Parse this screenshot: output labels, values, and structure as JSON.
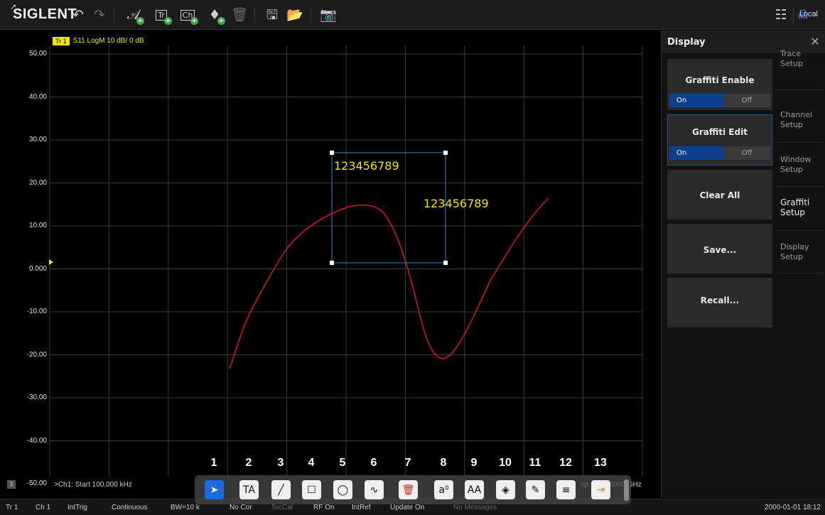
{
  "app": {
    "brand": "SIGLENT",
    "remote_label": "Local"
  },
  "toolbar": {
    "icons": [
      "pointer-icon",
      "undo-icon",
      "redo-icon",
      "add-trace-icon",
      "add-trace-window-icon",
      "add-channel-icon",
      "add-marker-icon",
      "delete-icon",
      "save-icon",
      "open-folder-icon",
      "camera-icon",
      "layout-icon",
      "network-icon"
    ]
  },
  "trace": {
    "badge": "Tr 1",
    "description": "S11 LogM 10 dB/ 0 dB",
    "color": "#f2e600",
    "curve_color": "#e01020"
  },
  "y_axis": {
    "ticks": [
      "50.00",
      "40.00",
      "30.00",
      "20.00",
      "10.00",
      "0.000",
      "-10.00",
      "-20.00",
      "-30.00",
      "-40.00",
      "-50.00"
    ]
  },
  "channel_line": {
    "index": "1",
    "start": ">Ch1: Start 100.000 kHz",
    "stop_suffix": "op",
    "stop_value": "00000 GHz"
  },
  "graffiti": {
    "text1": "123456789",
    "text2": "123456789"
  },
  "tools": {
    "numbers": [
      "1",
      "2",
      "3",
      "4",
      "5",
      "6",
      "7",
      "8",
      "9",
      "10",
      "11",
      "12",
      "13"
    ],
    "items": [
      {
        "name": "select-arrow-tool",
        "glyph": "➤"
      },
      {
        "name": "text-tool",
        "glyph": "TA"
      },
      {
        "name": "line-tool",
        "glyph": "╱"
      },
      {
        "name": "rectangle-tool",
        "glyph": "☐"
      },
      {
        "name": "ellipse-tool",
        "glyph": "◯"
      },
      {
        "name": "freehand-tool",
        "glyph": "∿"
      },
      {
        "name": "delete-tool",
        "glyph": "🗑"
      },
      {
        "name": "font-size-tool",
        "glyph": "a⁰"
      },
      {
        "name": "font-tool",
        "glyph": "AA"
      },
      {
        "name": "fill-color-tool",
        "glyph": "◈"
      },
      {
        "name": "pen-color-tool",
        "glyph": "✎"
      },
      {
        "name": "line-width-tool",
        "glyph": "≡"
      },
      {
        "name": "exit-tool",
        "glyph": "⇥"
      }
    ]
  },
  "panel": {
    "title": "Display",
    "softkeys": {
      "graffiti_enable": {
        "label": "Graffiti Enable",
        "on": "On",
        "off": "Off"
      },
      "graffiti_edit": {
        "label": "Graffiti Edit",
        "on": "On",
        "off": "Off"
      },
      "clear_all": "Clear All",
      "save": "Save...",
      "recall": "Recall..."
    },
    "tabs": {
      "trace_setup": [
        "Trace",
        "Setup"
      ],
      "channel_setup": [
        "Channel",
        "Setup"
      ],
      "window_setup": [
        "Window",
        "Setup"
      ],
      "graffiti_setup": [
        "Graffiti",
        "Setup"
      ],
      "display_setup": [
        "Display",
        "Setup"
      ]
    }
  },
  "status": {
    "trace": "Tr 1",
    "channel": "Ch 1",
    "trigger": "IntTrig",
    "sweep": "Continuous",
    "bandwidth": "BW=10 k",
    "correction": "No Cor",
    "srccal": "SrcCal",
    "rf": "RF On",
    "ref": "IntRef",
    "update": "Update On",
    "messages": "No Messages",
    "datetime": "2000-01-01 18:12"
  }
}
